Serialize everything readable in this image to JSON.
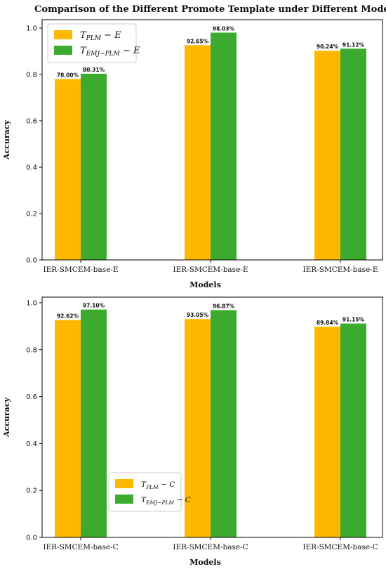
{
  "title": "Comparison of the Different Promote Template under Different Models",
  "colors": {
    "series1": "#FFB800",
    "series2": "#3BAA2E"
  },
  "chart_data": [
    {
      "type": "bar",
      "categories": [
        "IER-SMCEM-base-E",
        "IER-SMCEM-base-E",
        "IER-SMCEM-base-E"
      ],
      "series": [
        {
          "name": "T_{PLM} − E",
          "name_main": "T",
          "name_sub": "PLM",
          "name_tail": " − E",
          "values": [
            0.78,
            0.9265,
            0.9024
          ],
          "labels": [
            "78.00%",
            "92.65%",
            "90.24%"
          ]
        },
        {
          "name": "T_{EMJ−PLM} − E",
          "name_main": "T",
          "name_sub": "EMJ−PLM",
          "name_tail": " − E",
          "values": [
            0.8031,
            0.9803,
            0.9112
          ],
          "labels": [
            "80.31%",
            "98.03%",
            "91.12%"
          ]
        }
      ],
      "xlabel": "Models",
      "ylabel": "Accuracy",
      "ylim": [
        0,
        1.0
      ],
      "yticks": [
        "0.0",
        "0.2",
        "0.4",
        "0.6",
        "0.8",
        "1.0"
      ],
      "legend": "top-left",
      "grid": false
    },
    {
      "type": "bar",
      "categories": [
        "IER-SMCEM-base-C",
        "IER-SMCEM-base-C",
        "IER-SMCEM-base-C"
      ],
      "series": [
        {
          "name": "T_{PLM} − C",
          "name_main": "T",
          "name_sub": "PLM",
          "name_tail": " − C",
          "values": [
            0.9262,
            0.9305,
            0.8984
          ],
          "labels": [
            "92.62%",
            "93.05%",
            "89.84%"
          ]
        },
        {
          "name": "T_{EMJ−PLM} − C",
          "name_main": "T",
          "name_sub": "EMJ−PLM",
          "name_tail": " − C",
          "values": [
            0.971,
            0.9687,
            0.9115
          ],
          "labels": [
            "97.10%",
            "96.87%",
            "91.15%"
          ]
        }
      ],
      "xlabel": "Models",
      "ylabel": "Accuracy",
      "ylim": [
        0,
        1.0
      ],
      "yticks": [
        "0.0",
        "0.2",
        "0.4",
        "0.6",
        "0.8",
        "1.0"
      ],
      "legend": "bottom-left",
      "grid": false
    }
  ]
}
